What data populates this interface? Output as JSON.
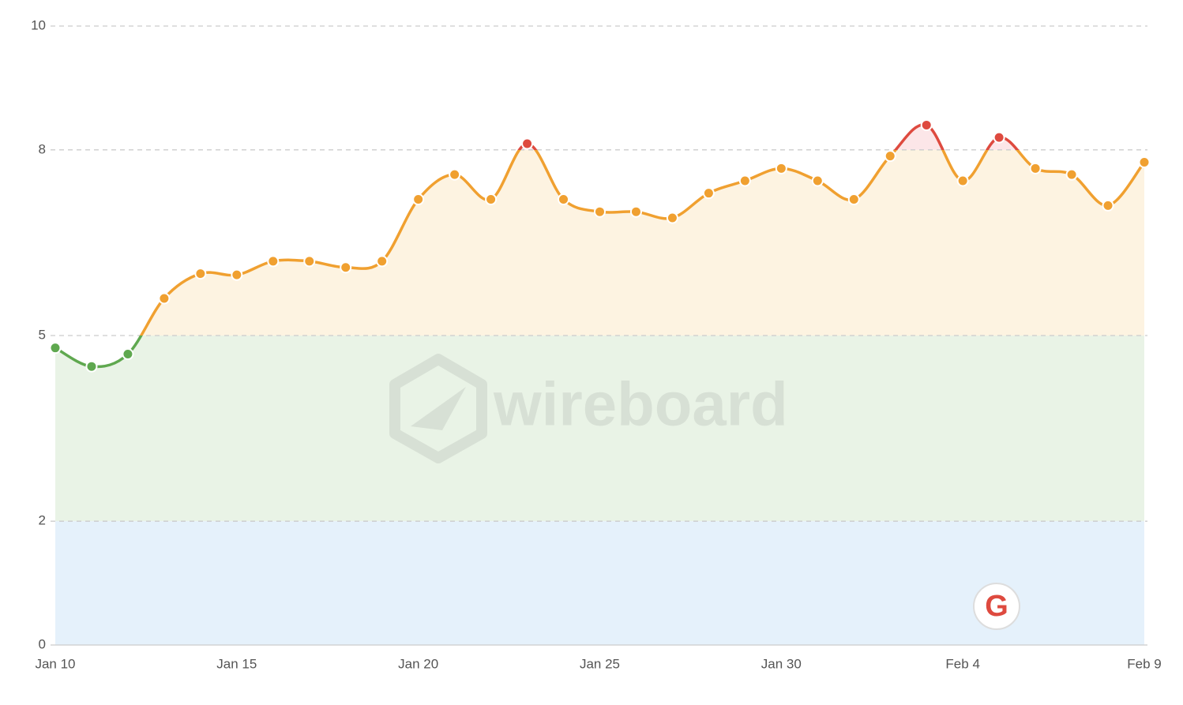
{
  "chart_data": {
    "type": "line",
    "x": [
      "Jan 10",
      null,
      null,
      null,
      null,
      "Jan 15",
      null,
      null,
      null,
      null,
      "Jan 20",
      null,
      null,
      null,
      null,
      "Jan 25",
      null,
      null,
      null,
      null,
      "Jan 30",
      null,
      null,
      null,
      null,
      "Feb 4",
      null,
      null,
      null,
      null,
      "Feb 9"
    ],
    "values": [
      4.8,
      4.5,
      4.7,
      5.6,
      6.0,
      5.98,
      6.2,
      6.2,
      6.1,
      6.2,
      7.2,
      7.6,
      7.2,
      8.1,
      7.2,
      7.0,
      7.0,
      6.9,
      7.3,
      7.5,
      7.7,
      7.5,
      7.2,
      7.9,
      8.4,
      7.5,
      8.2,
      7.7,
      7.6,
      7.1,
      7.8
    ],
    "ylim": [
      0,
      10
    ],
    "yticks": [
      0,
      2,
      5,
      8,
      10
    ],
    "grid": true,
    "bands": [
      {
        "from": 0,
        "to": 2,
        "line_color": "#4a90d9",
        "fill": "#e5f1fb"
      },
      {
        "from": 2,
        "to": 5,
        "line_color": "#5fa84f",
        "fill": "#e9f3e6"
      },
      {
        "from": 5,
        "to": 8,
        "line_color": "#f0a030",
        "fill": "#fdf3e1"
      },
      {
        "from": 8,
        "to": 10,
        "line_color": "#de4a3f",
        "fill": "#fce6e8"
      }
    ],
    "watermark": "wireboard",
    "event_marker": "G"
  }
}
